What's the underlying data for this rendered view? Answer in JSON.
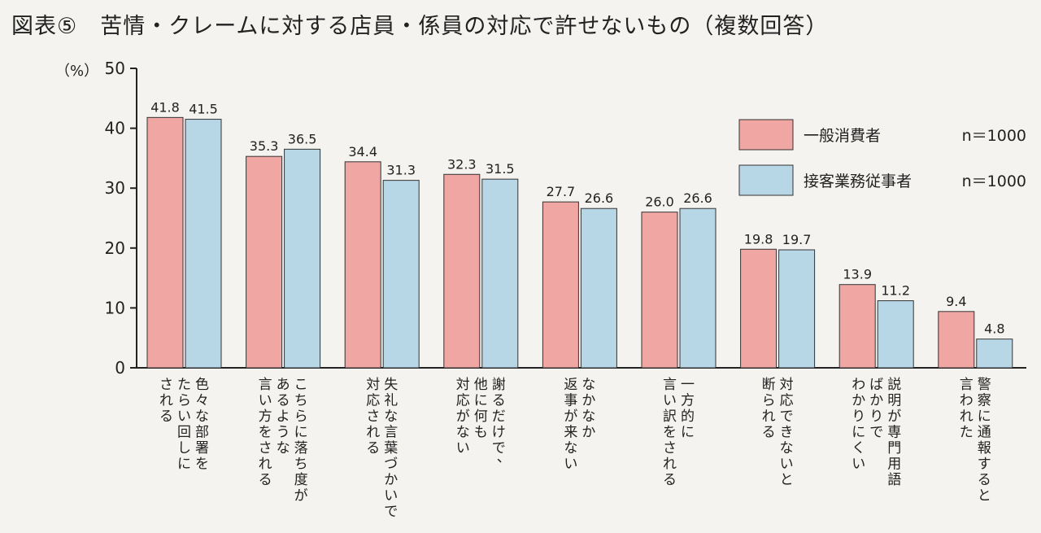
{
  "title": "図表⑤　苦情・クレームに対する店員・係員の対応で許せないもの（複数回答）",
  "colors": {
    "series1": "#f0a6a2",
    "series2": "#b7d6e6",
    "stroke": "#333333",
    "axis": "#222222"
  },
  "chart_data": {
    "type": "bar",
    "title": "苦情・クレームに対する店員・係員の対応で許せないもの（複数回答）",
    "ylabel": "（%）",
    "xlabel": "",
    "ylim": [
      0,
      50
    ],
    "yticks": [
      0,
      10,
      20,
      30,
      40,
      50
    ],
    "grid": false,
    "legend_position": "top-right",
    "categories": [
      [
        "色々な部署を",
        "たらい回しに",
        "される"
      ],
      [
        "こちらに落ち度が",
        "あるような",
        "言い方をされる"
      ],
      [
        "失礼な言葉づかいで",
        "対応される"
      ],
      [
        "謝るだけで、",
        "他に何も",
        "対応がない"
      ],
      [
        "なかなか",
        "返事が来ない"
      ],
      [
        "一方的に",
        "言い訳をされる"
      ],
      [
        "対応できないと",
        "断られる"
      ],
      [
        "説明が専門用語",
        "ばかりで",
        "わかりにくい"
      ],
      [
        "警察に通報すると",
        "言われた"
      ]
    ],
    "series": [
      {
        "name": "一般消費者",
        "n_label": "n＝1000",
        "values": [
          41.8,
          35.3,
          34.4,
          32.3,
          27.7,
          26.0,
          19.8,
          13.9,
          9.4
        ],
        "labels": [
          "41.8",
          "35.3",
          "34.4",
          "32.3",
          "27.7",
          "26.0",
          "19.8",
          "13.9",
          "9.4"
        ]
      },
      {
        "name": "接客業務従事者",
        "n_label": "n＝1000",
        "values": [
          41.5,
          36.5,
          31.3,
          31.5,
          26.6,
          26.6,
          19.7,
          11.2,
          4.8
        ],
        "labels": [
          "41.5",
          "36.5",
          "31.3",
          "31.5",
          "26.6",
          "26.6",
          "19.7",
          "11.2",
          "4.8"
        ]
      }
    ]
  }
}
